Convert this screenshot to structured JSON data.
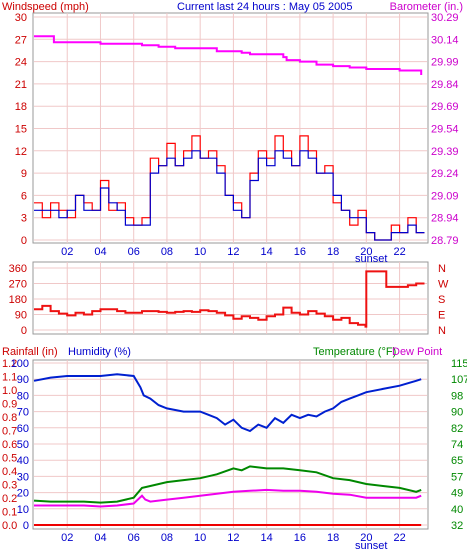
{
  "colors": {
    "frame": "#999999",
    "plot_bg": "#ffffff",
    "grid": "#f0c8c8",
    "wind_gust": "#ff0000",
    "wind_avg": "#0000cc",
    "barometer": "#ff00ff",
    "wind_dir": "#ee1111",
    "rainfall": "#ee0000",
    "humidity": "#0020d0",
    "temperature": "#008800",
    "dew_point": "#ee00ee",
    "red_text": "#cc0000",
    "blue_text": "#0000cc",
    "green_text": "#008800",
    "magenta_text": "#cc00cc"
  },
  "chart_data": [
    {
      "type": "line",
      "title": "Current last 24 hours : May 05 2005",
      "ylabel_left": "Windspeed (mph)",
      "ylabel_right": "Barometer (in.)",
      "x_tick_labels": [
        "02",
        "04",
        "06",
        "08",
        "10",
        "12",
        "14",
        "16",
        "18",
        "20",
        "22"
      ],
      "x_annotation": "sunset",
      "sunset_hour": 19.9,
      "ylim_left": [
        0,
        30
      ],
      "yticks_left": [
        "0",
        "3",
        "6",
        "9",
        "12",
        "15",
        "18",
        "21",
        "24",
        "27",
        "30"
      ],
      "ylim_right": [
        28.79,
        30.29
      ],
      "yticks_right": [
        "28.79",
        "28.94",
        "29.09",
        "29.24",
        "29.39",
        "29.54",
        "29.69",
        "29.84",
        "29.99",
        "30.14",
        "30.29"
      ],
      "grid": true,
      "series": [
        {
          "name": "Windspeed gust",
          "axis": "left",
          "x": [
            0,
            0.5,
            1,
            1.5,
            2,
            2.5,
            3,
            3.5,
            4,
            4.5,
            5,
            5.5,
            6,
            6.5,
            7,
            7.5,
            8,
            8.5,
            9,
            9.5,
            10,
            10.5,
            11,
            11.5,
            12,
            12.5,
            13,
            13.5,
            14,
            14.5,
            15,
            15.5,
            16,
            16.5,
            17,
            17.5,
            18,
            18.5,
            19,
            19.5,
            20,
            20.5,
            21,
            21.5,
            22,
            22.5,
            23,
            23.5
          ],
          "values": [
            5,
            3,
            5,
            4,
            3,
            6,
            5,
            4,
            8,
            4,
            5,
            3,
            2,
            3,
            11,
            10,
            13,
            10,
            12,
            14,
            11,
            12,
            10,
            6,
            5,
            3,
            9,
            12,
            11,
            14,
            12,
            10,
            14,
            12,
            9,
            10,
            5,
            4,
            2,
            4,
            1,
            0,
            0,
            2,
            1,
            3,
            1,
            1
          ]
        },
        {
          "name": "Windspeed average",
          "axis": "left",
          "x": [
            0,
            0.5,
            1,
            1.5,
            2,
            2.5,
            3,
            3.5,
            4,
            4.5,
            5,
            5.5,
            6,
            6.5,
            7,
            7.5,
            8,
            8.5,
            9,
            9.5,
            10,
            10.5,
            11,
            11.5,
            12,
            12.5,
            13,
            13.5,
            14,
            14.5,
            15,
            15.5,
            16,
            16.5,
            17,
            17.5,
            18,
            18.5,
            19,
            19.5,
            20,
            20.5,
            21,
            21.5,
            22,
            22.5,
            23,
            23.5
          ],
          "values": [
            4,
            4,
            4,
            3,
            4,
            6,
            4,
            4,
            7,
            5,
            4,
            2,
            2,
            2,
            9,
            10,
            11,
            10,
            11,
            12,
            11,
            11,
            9,
            6,
            4,
            3,
            8,
            11,
            10,
            12,
            11,
            10,
            12,
            11,
            9,
            9,
            6,
            4,
            3,
            3,
            1,
            0,
            0,
            1,
            1,
            2,
            1,
            1
          ]
        },
        {
          "name": "Barometer",
          "axis": "right",
          "x": [
            0,
            1,
            1.2,
            3.8,
            4,
            4.3,
            6.5,
            7.5,
            8.5,
            11,
            12.5,
            13,
            15,
            15.2,
            16,
            17,
            18,
            19,
            20,
            22,
            23.3
          ],
          "values": [
            30.16,
            30.16,
            30.12,
            30.12,
            30.11,
            30.11,
            30.1,
            30.09,
            30.08,
            30.06,
            30.05,
            30.04,
            30.02,
            30.0,
            29.99,
            29.97,
            29.96,
            29.95,
            29.94,
            29.93,
            29.9
          ]
        }
      ]
    },
    {
      "type": "line",
      "title": "",
      "ylim_left": [
        0,
        360
      ],
      "yticks_left": [
        "0",
        "90",
        "180",
        "270",
        "360"
      ],
      "yticks_right": [
        "N",
        "E",
        "S",
        "W",
        "N"
      ],
      "grid": true,
      "series": [
        {
          "name": "Wind direction",
          "axis": "left",
          "x": [
            0,
            0.5,
            1,
            1.5,
            2,
            2.5,
            3,
            3.5,
            4,
            4.5,
            5,
            5.5,
            6,
            6.5,
            7,
            7.5,
            8,
            8.5,
            9,
            9.5,
            10,
            10.5,
            11,
            11.5,
            12,
            12.5,
            13,
            13.5,
            14,
            14.5,
            15,
            15.5,
            16,
            16.5,
            17,
            17.5,
            18,
            18.5,
            19,
            19.5,
            19.95,
            20,
            21,
            21.2,
            22,
            22.5,
            23,
            23.5
          ],
          "values": [
            120,
            140,
            110,
            95,
            85,
            100,
            90,
            110,
            120,
            120,
            110,
            100,
            100,
            110,
            110,
            105,
            100,
            105,
            110,
            105,
            115,
            110,
            100,
            85,
            65,
            80,
            70,
            60,
            80,
            90,
            130,
            100,
            90,
            110,
            95,
            80,
            60,
            70,
            40,
            30,
            20,
            340,
            340,
            250,
            250,
            260,
            270,
            270
          ]
        }
      ]
    },
    {
      "type": "line",
      "title": "",
      "ylabel_left": "Rainfall (in)",
      "ylabel_left2": "Humidity (%)",
      "ylabel_right": "Temperature (°F)",
      "ylabel_right2": "Dew Point",
      "x_tick_labels": [
        "02",
        "04",
        "06",
        "08",
        "10",
        "12",
        "14",
        "16",
        "18",
        "20",
        "22"
      ],
      "x_annotation": "sunset",
      "yticks_rain": [
        "0.0",
        "0.1",
        "0.2",
        "0.3",
        "0.4",
        "0.5",
        "0.6",
        "0.7",
        "0.8",
        "0.9",
        "1.0",
        "1.1",
        "1.2"
      ],
      "yticks_humidity": [
        "0",
        "10",
        "20",
        "30",
        "40",
        "50",
        "60",
        "70",
        "80",
        "90",
        "100"
      ],
      "yticks_temp": [
        "32",
        "40",
        "49",
        "57",
        "65",
        "74",
        "82",
        "90",
        "98",
        "107",
        "115"
      ],
      "ylim_rain": [
        0,
        1.2
      ],
      "ylim_humidity": [
        0,
        100
      ],
      "ylim_temp": [
        32,
        115
      ],
      "grid": true,
      "series": [
        {
          "name": "Rainfall",
          "axis": "rain",
          "x": [
            0,
            23.3
          ],
          "values": [
            0,
            0
          ]
        },
        {
          "name": "Humidity",
          "axis": "humidity",
          "x": [
            0,
            1,
            2,
            3,
            4,
            5,
            6,
            6.4,
            6.6,
            7,
            7.5,
            8,
            9,
            10,
            10.5,
            11,
            11.5,
            12,
            12.5,
            13,
            13.5,
            14,
            14.5,
            15,
            15.5,
            16,
            16.5,
            17,
            17.5,
            18,
            18.5,
            19,
            19.5,
            20,
            21,
            22,
            23,
            23.3
          ],
          "values": [
            89,
            91,
            92,
            92,
            92,
            93,
            92,
            85,
            80,
            78,
            74,
            72,
            70,
            70,
            68,
            66,
            62,
            65,
            60,
            58,
            62,
            60,
            66,
            63,
            68,
            66,
            68,
            67,
            70,
            72,
            76,
            78,
            80,
            82,
            84,
            86,
            89,
            90
          ]
        },
        {
          "name": "Temperature",
          "axis": "temp",
          "x": [
            0,
            1,
            2,
            3,
            4,
            5,
            6,
            6.5,
            7,
            8,
            9,
            10,
            11,
            12,
            12.5,
            13,
            14,
            15,
            16,
            17,
            18,
            19,
            20,
            21,
            22,
            23,
            23.3
          ],
          "values": [
            44.5,
            44,
            44,
            44,
            43.5,
            44,
            46,
            51,
            52,
            54,
            55,
            56,
            58,
            61,
            60,
            62,
            61,
            61,
            60,
            59,
            56,
            55,
            53,
            52,
            51,
            49,
            50
          ]
        },
        {
          "name": "Dew Point",
          "axis": "temp",
          "x": [
            0,
            1,
            2,
            3,
            4,
            5,
            6,
            6.5,
            6.7,
            7,
            8,
            9,
            10,
            11,
            12,
            13,
            14,
            15,
            16,
            17,
            18,
            19,
            20,
            21,
            22,
            23,
            23.3
          ],
          "values": [
            42,
            42,
            42,
            42,
            41.5,
            42,
            43,
            47,
            45,
            44,
            45,
            46,
            47,
            48,
            49,
            49.5,
            50,
            49.5,
            49.5,
            49,
            48,
            47.5,
            46,
            46,
            46,
            46,
            47
          ]
        }
      ]
    }
  ]
}
